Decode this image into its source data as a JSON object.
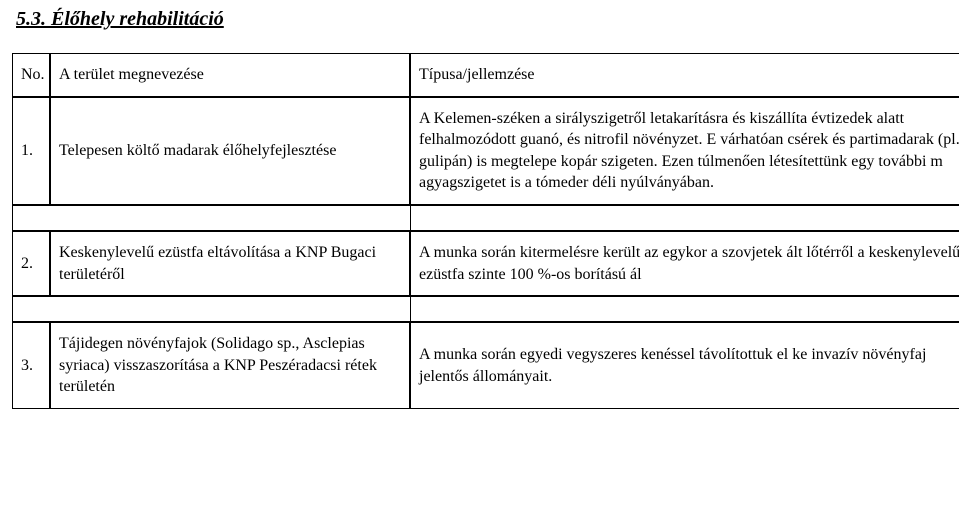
{
  "heading": "5.3. Élőhely rehabilitáció",
  "table": {
    "header": {
      "no": "No.",
      "name": "A terület megnevezése",
      "desc": "Típusa/jellemzése"
    },
    "rows": [
      {
        "no": "1.",
        "name": "Telepesen költő madarak élőhelyfejlesztése",
        "desc": "A Kelemen-széken a sirályszigetről letakarításra és kiszállíta évtizedek alatt felhalmozódott guanó, és nitrofil növényzet. E várhatóan csérek és partimadarak (pl. gulipán) is megtelepe kopár szigeten. Ezen túlmenően létesítettünk egy további m agyagszigetet is a tómeder déli nyúlványában."
      },
      {
        "no": "2.",
        "name": "Keskenylevelű ezüstfa eltávolítása a KNP Bugaci területéről",
        "desc": "A munka során kitermelésre került az egykor a szovjetek ált lőtérről a keskenylevelű ezüstfa szinte 100 %-os borítású ál"
      },
      {
        "no": "3.",
        "name": "Tájidegen növényfajok (Solidago sp., Asclepias syriaca) visszaszorítása a KNP Peszéradacsi rétek területén",
        "desc": "A munka során egyedi vegyszeres kenéssel távolítottuk el ke invazív növényfaj jelentős állományait."
      }
    ]
  }
}
